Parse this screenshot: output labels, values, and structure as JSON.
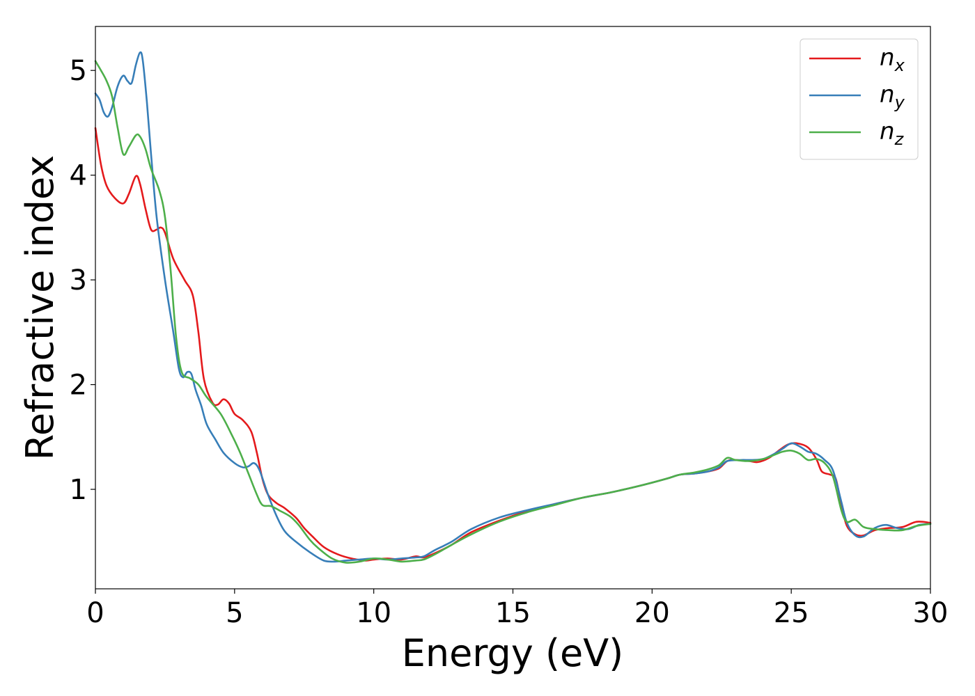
{
  "chart_data": {
    "type": "line",
    "title": "",
    "xlabel": "Energy (eV)",
    "ylabel": "Refractive index",
    "xlim": [
      0,
      30
    ],
    "ylim": [
      0.05,
      5.42
    ],
    "xticks": [
      0,
      5,
      10,
      15,
      20,
      25,
      30
    ],
    "yticks": [
      1,
      2,
      3,
      4,
      5
    ],
    "xtick_labels": [
      "0",
      "5",
      "10",
      "15",
      "20",
      "25",
      "30"
    ],
    "ytick_labels": [
      "1",
      "2",
      "3",
      "4",
      "5"
    ],
    "grid": false,
    "legend_position": "top-right",
    "series": [
      {
        "name_base": "n",
        "name_sub": "x",
        "color": "#e41a1c",
        "points": [
          [
            0,
            4.45
          ],
          [
            0.2,
            4.1
          ],
          [
            0.4,
            3.9
          ],
          [
            0.7,
            3.78
          ],
          [
            1.0,
            3.73
          ],
          [
            1.2,
            3.82
          ],
          [
            1.45,
            3.99
          ],
          [
            1.6,
            3.92
          ],
          [
            1.8,
            3.68
          ],
          [
            2.0,
            3.48
          ],
          [
            2.2,
            3.48
          ],
          [
            2.35,
            3.5
          ],
          [
            2.5,
            3.45
          ],
          [
            2.8,
            3.2
          ],
          [
            3.2,
            3.0
          ],
          [
            3.5,
            2.85
          ],
          [
            3.7,
            2.5
          ],
          [
            3.9,
            2.05
          ],
          [
            4.2,
            1.83
          ],
          [
            4.4,
            1.81
          ],
          [
            4.6,
            1.86
          ],
          [
            4.8,
            1.82
          ],
          [
            5.0,
            1.72
          ],
          [
            5.3,
            1.66
          ],
          [
            5.6,
            1.55
          ],
          [
            5.8,
            1.35
          ],
          [
            6.0,
            1.1
          ],
          [
            6.2,
            0.95
          ],
          [
            6.5,
            0.87
          ],
          [
            6.8,
            0.82
          ],
          [
            7.2,
            0.73
          ],
          [
            7.5,
            0.63
          ],
          [
            7.8,
            0.55
          ],
          [
            8.2,
            0.45
          ],
          [
            8.7,
            0.38
          ],
          [
            9.2,
            0.34
          ],
          [
            9.7,
            0.32
          ],
          [
            10.0,
            0.33
          ],
          [
            10.5,
            0.34
          ],
          [
            11.0,
            0.33
          ],
          [
            11.5,
            0.36
          ],
          [
            11.8,
            0.35
          ],
          [
            12.2,
            0.39
          ],
          [
            12.8,
            0.47
          ],
          [
            13.5,
            0.59
          ],
          [
            14.5,
            0.7
          ],
          [
            15.5,
            0.79
          ],
          [
            16.5,
            0.86
          ],
          [
            17.5,
            0.92
          ],
          [
            18.5,
            0.97
          ],
          [
            19.5,
            1.03
          ],
          [
            20.5,
            1.1
          ],
          [
            21.0,
            1.14
          ],
          [
            21.5,
            1.15
          ],
          [
            22.0,
            1.17
          ],
          [
            22.4,
            1.2
          ],
          [
            22.7,
            1.27
          ],
          [
            23.0,
            1.28
          ],
          [
            23.5,
            1.27
          ],
          [
            23.8,
            1.26
          ],
          [
            24.2,
            1.3
          ],
          [
            24.6,
            1.38
          ],
          [
            24.9,
            1.43
          ],
          [
            25.2,
            1.44
          ],
          [
            25.6,
            1.4
          ],
          [
            25.9,
            1.29
          ],
          [
            26.1,
            1.17
          ],
          [
            26.4,
            1.14
          ],
          [
            26.6,
            1.1
          ],
          [
            26.8,
            0.85
          ],
          [
            27.0,
            0.65
          ],
          [
            27.3,
            0.57
          ],
          [
            27.6,
            0.56
          ],
          [
            28.0,
            0.61
          ],
          [
            28.5,
            0.63
          ],
          [
            29.0,
            0.64
          ],
          [
            29.5,
            0.69
          ],
          [
            30.0,
            0.68
          ]
        ]
      },
      {
        "name_base": "n",
        "name_sub": "y",
        "color": "#377eb8",
        "points": [
          [
            0,
            4.78
          ],
          [
            0.15,
            4.72
          ],
          [
            0.3,
            4.6
          ],
          [
            0.45,
            4.56
          ],
          [
            0.6,
            4.65
          ],
          [
            0.8,
            4.85
          ],
          [
            1.0,
            4.95
          ],
          [
            1.15,
            4.9
          ],
          [
            1.3,
            4.88
          ],
          [
            1.45,
            5.05
          ],
          [
            1.6,
            5.17
          ],
          [
            1.7,
            5.1
          ],
          [
            1.85,
            4.7
          ],
          [
            2.0,
            4.2
          ],
          [
            2.2,
            3.6
          ],
          [
            2.5,
            3.0
          ],
          [
            2.8,
            2.5
          ],
          [
            3.0,
            2.15
          ],
          [
            3.15,
            2.07
          ],
          [
            3.3,
            2.12
          ],
          [
            3.45,
            2.1
          ],
          [
            3.6,
            1.95
          ],
          [
            3.8,
            1.8
          ],
          [
            4.0,
            1.62
          ],
          [
            4.3,
            1.48
          ],
          [
            4.6,
            1.35
          ],
          [
            5.0,
            1.25
          ],
          [
            5.3,
            1.21
          ],
          [
            5.5,
            1.22
          ],
          [
            5.7,
            1.25
          ],
          [
            5.9,
            1.18
          ],
          [
            6.2,
            0.95
          ],
          [
            6.5,
            0.75
          ],
          [
            6.8,
            0.6
          ],
          [
            7.2,
            0.5
          ],
          [
            7.7,
            0.4
          ],
          [
            8.2,
            0.32
          ],
          [
            8.6,
            0.31
          ],
          [
            9.0,
            0.32
          ],
          [
            9.5,
            0.33
          ],
          [
            10.0,
            0.34
          ],
          [
            10.5,
            0.33
          ],
          [
            11.0,
            0.34
          ],
          [
            11.5,
            0.35
          ],
          [
            11.8,
            0.36
          ],
          [
            12.2,
            0.42
          ],
          [
            12.8,
            0.5
          ],
          [
            13.5,
            0.62
          ],
          [
            14.5,
            0.73
          ],
          [
            15.5,
            0.8
          ],
          [
            16.5,
            0.86
          ],
          [
            17.5,
            0.92
          ],
          [
            18.5,
            0.97
          ],
          [
            19.5,
            1.03
          ],
          [
            20.5,
            1.1
          ],
          [
            21.0,
            1.14
          ],
          [
            21.5,
            1.15
          ],
          [
            22.0,
            1.17
          ],
          [
            22.4,
            1.21
          ],
          [
            22.7,
            1.27
          ],
          [
            23.2,
            1.28
          ],
          [
            23.6,
            1.28
          ],
          [
            24.0,
            1.29
          ],
          [
            24.4,
            1.34
          ],
          [
            24.7,
            1.39
          ],
          [
            25.0,
            1.44
          ],
          [
            25.3,
            1.41
          ],
          [
            25.6,
            1.36
          ],
          [
            25.9,
            1.34
          ],
          [
            26.2,
            1.28
          ],
          [
            26.5,
            1.18
          ],
          [
            26.8,
            0.88
          ],
          [
            27.0,
            0.68
          ],
          [
            27.3,
            0.56
          ],
          [
            27.6,
            0.55
          ],
          [
            28.0,
            0.63
          ],
          [
            28.4,
            0.66
          ],
          [
            28.8,
            0.63
          ],
          [
            29.2,
            0.62
          ],
          [
            29.6,
            0.66
          ],
          [
            30.0,
            0.67
          ]
        ]
      },
      {
        "name_base": "n",
        "name_sub": "z",
        "color": "#4daf4a",
        "points": [
          [
            0,
            5.09
          ],
          [
            0.2,
            5.0
          ],
          [
            0.4,
            4.9
          ],
          [
            0.6,
            4.75
          ],
          [
            0.8,
            4.45
          ],
          [
            1.0,
            4.2
          ],
          [
            1.2,
            4.27
          ],
          [
            1.45,
            4.38
          ],
          [
            1.6,
            4.37
          ],
          [
            1.8,
            4.25
          ],
          [
            2.0,
            4.06
          ],
          [
            2.3,
            3.85
          ],
          [
            2.5,
            3.6
          ],
          [
            2.7,
            3.1
          ],
          [
            2.9,
            2.45
          ],
          [
            3.1,
            2.12
          ],
          [
            3.4,
            2.06
          ],
          [
            3.7,
            2.0
          ],
          [
            4.0,
            1.88
          ],
          [
            4.5,
            1.72
          ],
          [
            4.9,
            1.52
          ],
          [
            5.2,
            1.35
          ],
          [
            5.5,
            1.15
          ],
          [
            5.8,
            0.95
          ],
          [
            6.0,
            0.85
          ],
          [
            6.3,
            0.84
          ],
          [
            6.6,
            0.8
          ],
          [
            7.0,
            0.74
          ],
          [
            7.3,
            0.66
          ],
          [
            7.7,
            0.52
          ],
          [
            8.0,
            0.44
          ],
          [
            8.5,
            0.34
          ],
          [
            9.0,
            0.3
          ],
          [
            9.5,
            0.31
          ],
          [
            10.0,
            0.34
          ],
          [
            10.5,
            0.33
          ],
          [
            11.0,
            0.31
          ],
          [
            11.5,
            0.32
          ],
          [
            11.8,
            0.33
          ],
          [
            12.2,
            0.38
          ],
          [
            12.8,
            0.47
          ],
          [
            13.5,
            0.57
          ],
          [
            14.5,
            0.69
          ],
          [
            15.5,
            0.78
          ],
          [
            16.5,
            0.85
          ],
          [
            17.5,
            0.92
          ],
          [
            18.5,
            0.97
          ],
          [
            19.5,
            1.03
          ],
          [
            20.5,
            1.1
          ],
          [
            21.0,
            1.14
          ],
          [
            21.5,
            1.16
          ],
          [
            22.0,
            1.19
          ],
          [
            22.4,
            1.23
          ],
          [
            22.7,
            1.3
          ],
          [
            23.0,
            1.28
          ],
          [
            23.5,
            1.27
          ],
          [
            24.0,
            1.29
          ],
          [
            24.4,
            1.33
          ],
          [
            24.7,
            1.36
          ],
          [
            25.0,
            1.37
          ],
          [
            25.3,
            1.34
          ],
          [
            25.6,
            1.28
          ],
          [
            25.9,
            1.29
          ],
          [
            26.2,
            1.25
          ],
          [
            26.5,
            1.12
          ],
          [
            26.8,
            0.8
          ],
          [
            27.0,
            0.69
          ],
          [
            27.3,
            0.71
          ],
          [
            27.6,
            0.64
          ],
          [
            28.0,
            0.62
          ],
          [
            28.5,
            0.61
          ],
          [
            29.0,
            0.61
          ],
          [
            29.5,
            0.65
          ],
          [
            30.0,
            0.67
          ]
        ]
      }
    ]
  }
}
